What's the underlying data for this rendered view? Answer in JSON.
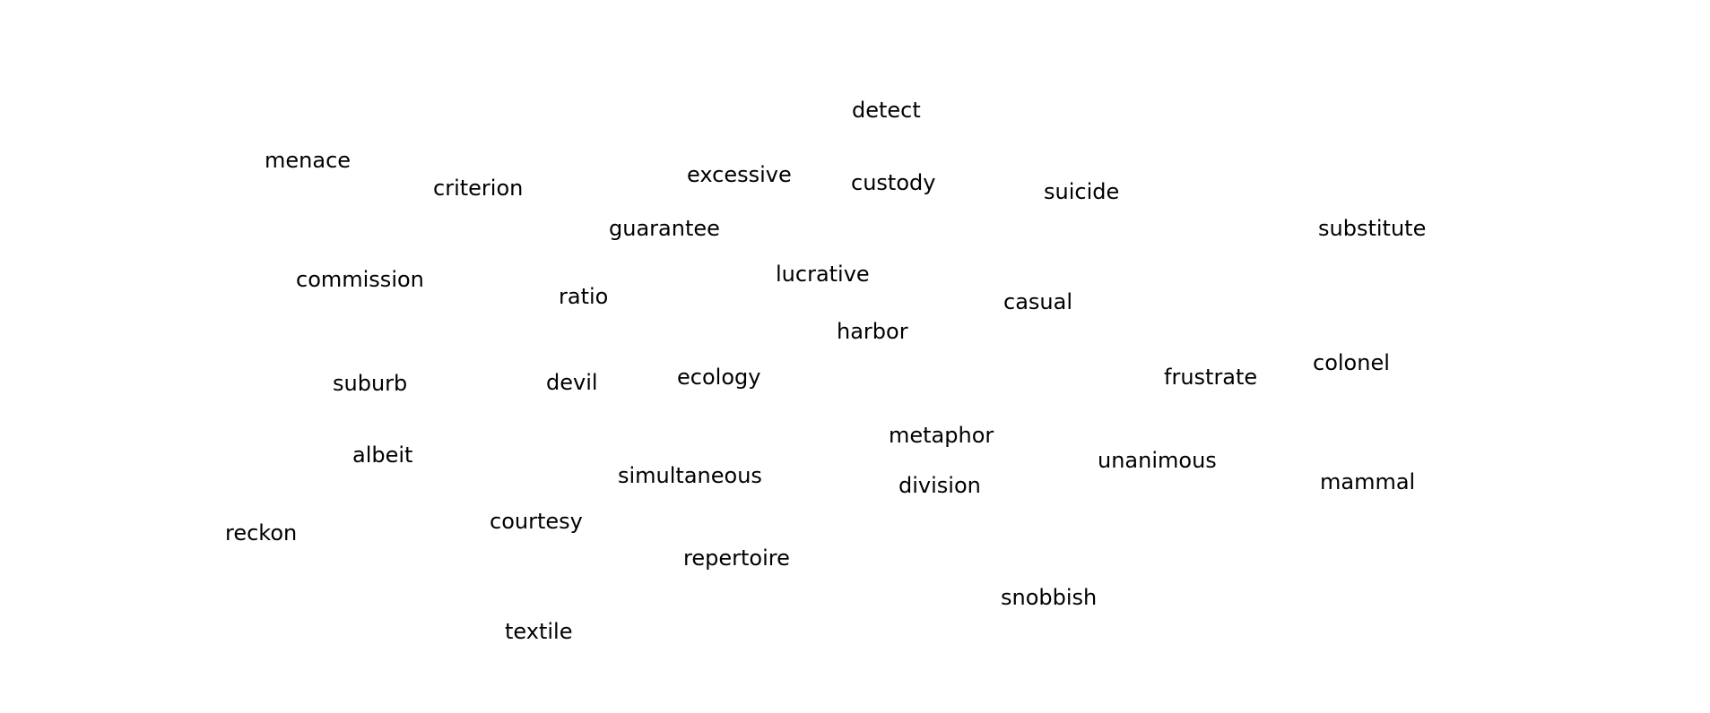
{
  "words": [
    "detect",
    "menace",
    "criterion",
    "excessive",
    "custody",
    "suicide",
    "guarantee",
    "substitute",
    "commission",
    "lucrative",
    "ratio",
    "casual",
    "harbor",
    "colonel",
    "suburb",
    "devil",
    "ecology",
    "frustrate",
    "metaphor",
    "albeit",
    "unanimous",
    "simultaneous",
    "division",
    "mammal",
    "reckon",
    "courtesy",
    "repertoire",
    "snobbish",
    "textile"
  ]
}
